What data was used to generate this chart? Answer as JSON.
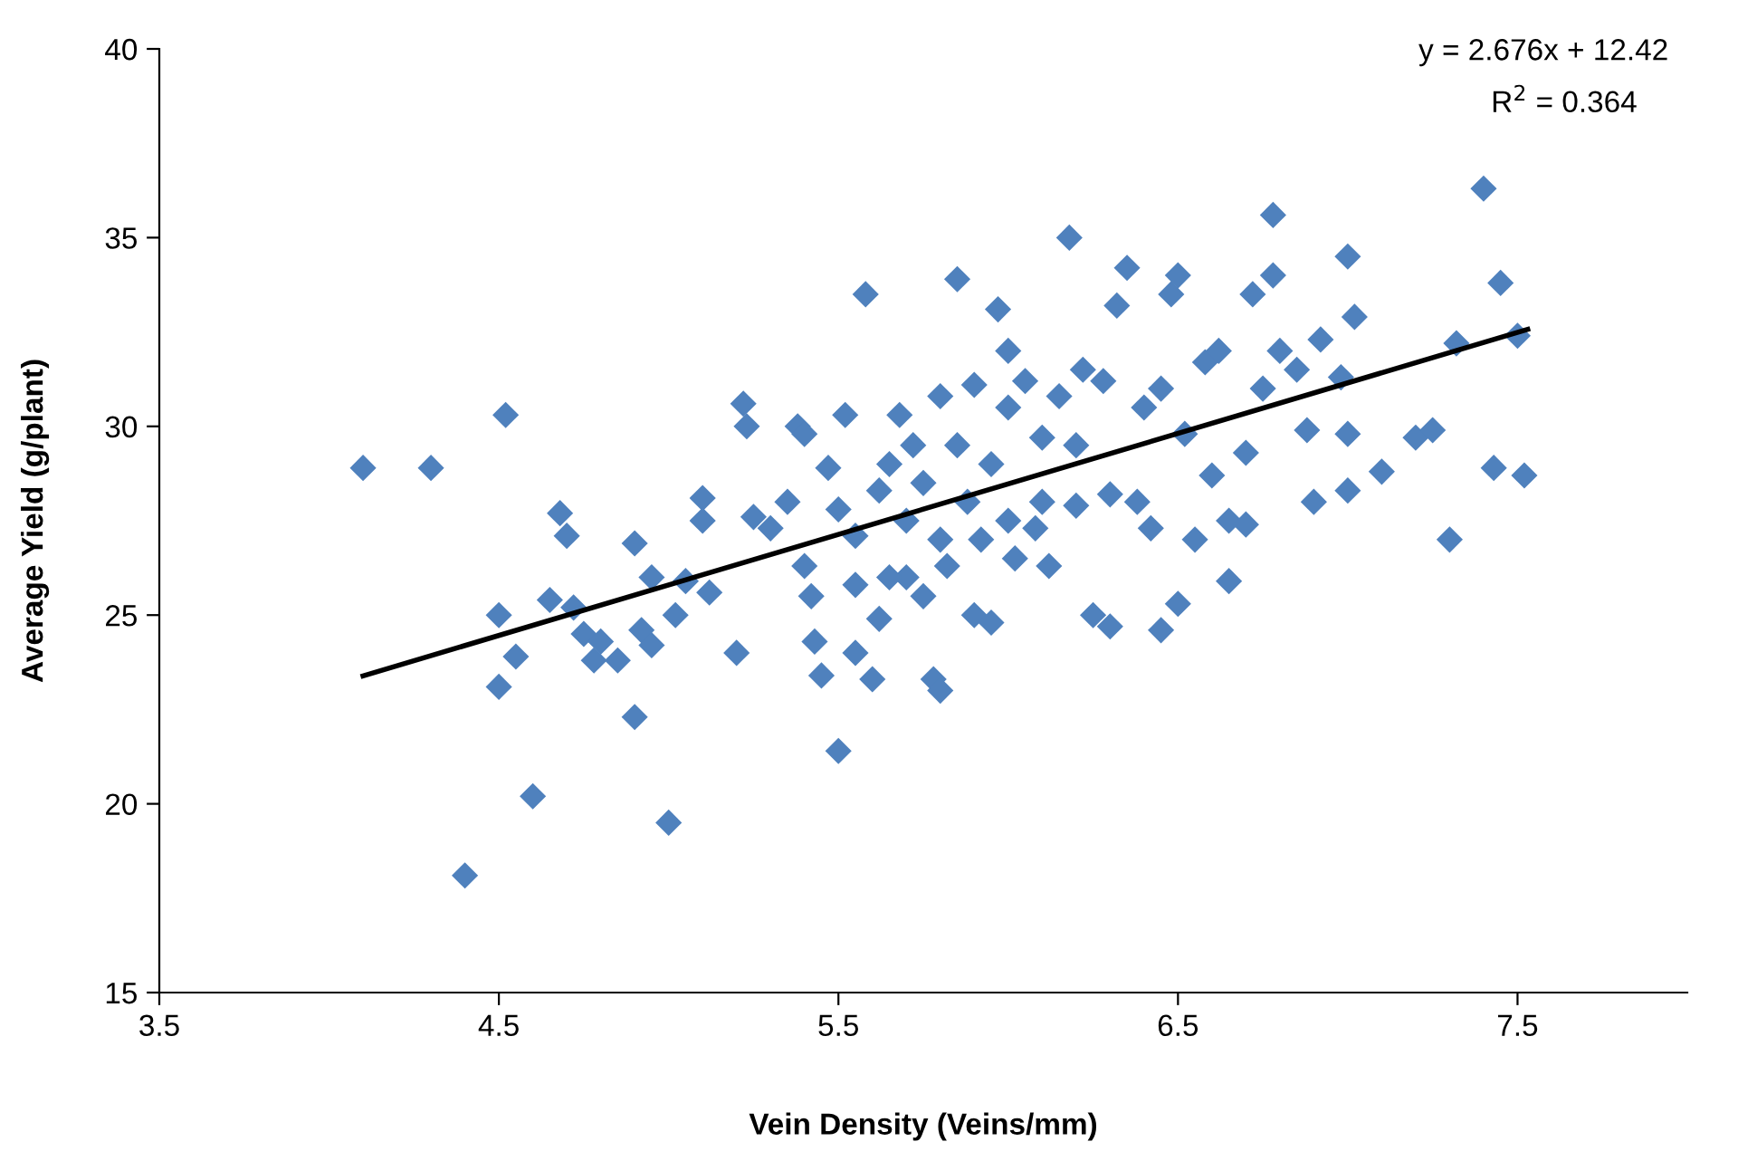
{
  "chart_data": {
    "type": "scatter",
    "xlabel": "Vein Density (Veins/mm)",
    "ylabel": "Average Yield (g/plant)",
    "annotations": [
      "y = 2.676x + 12.42",
      "R$^{2}$ = 0.364"
    ],
    "xlim": [
      3.5,
      8
    ],
    "xticks": [
      3.5,
      4.5,
      5.5,
      6.5,
      7.5
    ],
    "ylim": [
      15,
      40
    ],
    "yticks": [
      15,
      20,
      25,
      30,
      35,
      40
    ],
    "grid": false,
    "legend": false,
    "marker": "diamond",
    "series": [
      {
        "color": "#4f81bd",
        "x": [
          4.1,
          4.3,
          4.4,
          4.5,
          4.5,
          4.52,
          4.55,
          4.6,
          4.65,
          4.68,
          4.7,
          4.72,
          4.75,
          4.78,
          4.8,
          4.85,
          4.9,
          4.9,
          4.92,
          4.95,
          4.95,
          5.0,
          5.02,
          5.05,
          5.1,
          5.1,
          5.12,
          5.2,
          5.22,
          5.23,
          5.25,
          5.3,
          5.35,
          5.38,
          5.4,
          5.4,
          5.42,
          5.43,
          5.45,
          5.47,
          5.5,
          5.5,
          5.52,
          5.55,
          5.55,
          5.58,
          5.6,
          5.62,
          5.62,
          5.65,
          5.68,
          5.7,
          5.7,
          5.72,
          5.75,
          5.75,
          5.78,
          5.8,
          5.8,
          5.8,
          5.82,
          5.85,
          5.85,
          5.88,
          5.9,
          5.9,
          5.92,
          5.95,
          5.95,
          5.97,
          6.0,
          6.0,
          6.02,
          6.05,
          6.08,
          6.1,
          6.12,
          6.15,
          6.18,
          6.2,
          6.2,
          6.22,
          6.25,
          6.28,
          6.3,
          6.32,
          6.35,
          6.38,
          6.4,
          6.42,
          6.45,
          6.45,
          6.48,
          6.5,
          6.5,
          6.52,
          6.55,
          6.58,
          6.6,
          6.62,
          6.65,
          6.65,
          6.7,
          6.72,
          6.75,
          6.78,
          6.8,
          6.85,
          6.9,
          6.92,
          6.98,
          7.0,
          7.0,
          7.0,
          7.02,
          7.1,
          7.2,
          7.25,
          7.3,
          7.32,
          7.4,
          7.43,
          7.45,
          7.5,
          7.52,
          6.88,
          6.78,
          6.0,
          5.65,
          5.55,
          6.3,
          6.7,
          6.1
        ],
        "values": [
          28.9,
          28.9,
          18.1,
          25.0,
          23.1,
          30.3,
          23.9,
          20.2,
          25.4,
          27.7,
          27.1,
          25.2,
          24.5,
          23.8,
          24.3,
          23.8,
          26.9,
          22.3,
          24.6,
          24.2,
          26.0,
          19.5,
          25.0,
          25.9,
          28.1,
          27.5,
          25.6,
          24.0,
          30.6,
          30.0,
          27.6,
          27.3,
          28.0,
          30.0,
          29.8,
          26.3,
          25.5,
          24.3,
          23.4,
          28.9,
          21.4,
          27.8,
          30.3,
          25.8,
          27.1,
          33.5,
          23.3,
          24.9,
          28.3,
          29.0,
          30.3,
          26.0,
          27.5,
          29.5,
          25.5,
          28.5,
          23.3,
          23.0,
          30.8,
          27.0,
          26.3,
          33.9,
          29.5,
          28.0,
          25.0,
          31.1,
          27.0,
          24.8,
          29.0,
          33.1,
          27.5,
          30.5,
          26.5,
          31.2,
          27.3,
          28.0,
          26.3,
          30.8,
          35.0,
          29.5,
          27.9,
          31.5,
          25.0,
          31.2,
          24.7,
          33.2,
          34.2,
          28.0,
          30.5,
          27.3,
          24.6,
          31.0,
          33.5,
          34.0,
          25.3,
          29.8,
          27.0,
          31.7,
          28.7,
          32.0,
          25.9,
          27.5,
          29.3,
          33.5,
          31.0,
          35.6,
          32.0,
          31.5,
          28.0,
          32.3,
          31.3,
          34.5,
          29.8,
          28.3,
          32.9,
          28.8,
          29.7,
          29.9,
          27.0,
          32.2,
          36.3,
          28.9,
          33.8,
          32.4,
          28.7,
          29.9,
          34.0,
          32.0,
          26.0,
          24.0,
          28.2,
          27.4,
          29.7
        ]
      },
      {
        "type": "line",
        "color": "#000000",
        "marker": "none",
        "line_style": "solid",
        "x": [
          4.1,
          7.53
        ],
        "values": [
          23.39,
          32.57
        ]
      }
    ]
  }
}
